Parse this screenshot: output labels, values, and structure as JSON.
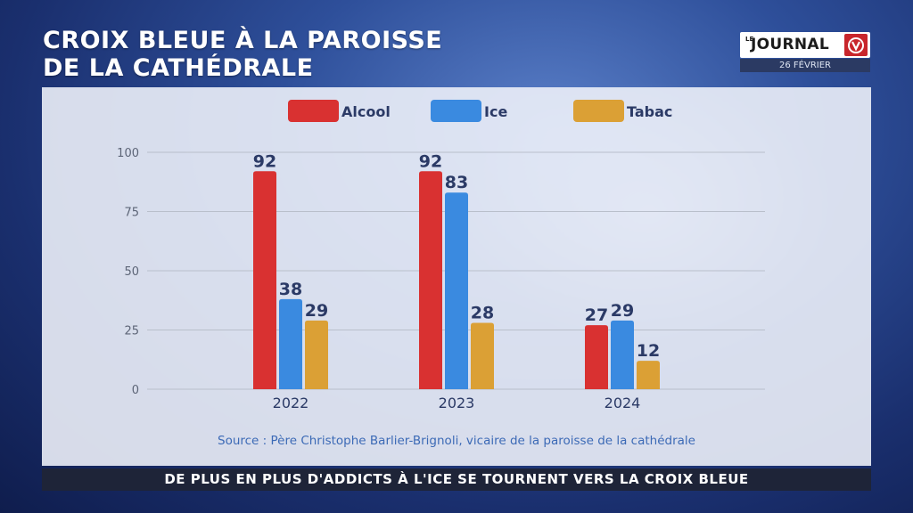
{
  "title": {
    "line1": "CROIX BLEUE À LA PAROISSE",
    "line2": "DE LA CATHÉDRALE"
  },
  "logo": {
    "prefix": "LE",
    "word": "JOURNAL",
    "date": "26 FÉVRIER"
  },
  "banner": "DE PLUS EN PLUS D'ADDICTS À L'ICE SE TOURNENT VERS LA CROIX BLEUE",
  "colors": {
    "alcool": "#d93131",
    "ice": "#3a8ae0",
    "tabac": "#dba035",
    "text_dark": "#2b3a66",
    "banner_bg": "#1e2438"
  },
  "chart_data": {
    "type": "bar",
    "categories": [
      "2022",
      "2023",
      "2024"
    ],
    "series": [
      {
        "name": "Alcool",
        "values": [
          92,
          92,
          27
        ]
      },
      {
        "name": "Ice",
        "values": [
          38,
          83,
          29
        ]
      },
      {
        "name": "Tabac",
        "values": [
          29,
          28,
          12
        ]
      }
    ],
    "yticks": [
      0,
      25,
      50,
      75,
      100
    ],
    "ylim": [
      0,
      100
    ],
    "grid": true,
    "legend": "top",
    "source": "Source : Père Christophe Barlier-Brignoli, vicaire de la paroisse de la cathédrale"
  }
}
